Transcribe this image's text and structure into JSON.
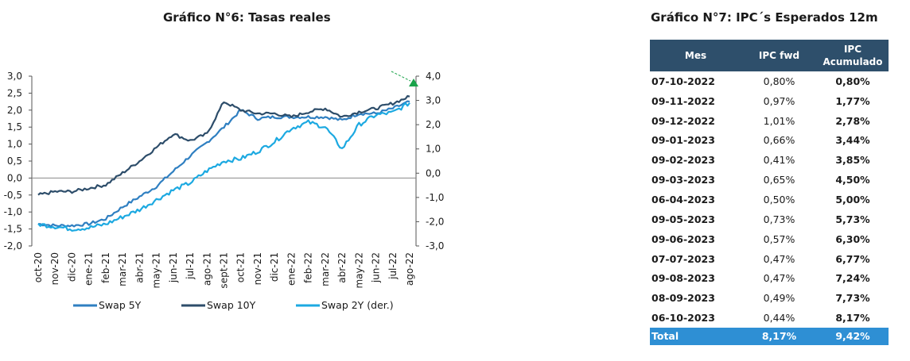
{
  "chart_title": "Gráfico N°6:  Tasas reales",
  "table_title": "Gráfico N°7:  IPC´s Esperados 12m",
  "chart_data": [
    {
      "type": "line",
      "title": "Gráfico N°6:  Tasas reales",
      "categories": [
        "oct-20",
        "nov-20",
        "dic-20",
        "ene-21",
        "feb-21",
        "mar-21",
        "abr-21",
        "may-21",
        "jun-21",
        "jul-21",
        "ago-21",
        "sept-21",
        "oct-21",
        "nov-21",
        "dic-21",
        "ene-22",
        "feb-22",
        "mar-22",
        "abr-22",
        "may-22",
        "jun-22",
        "jul-22",
        "ago-22"
      ],
      "y_left": {
        "ylim": [
          -2.0,
          3.0
        ],
        "ticks": [
          "3,0",
          "2,5",
          "2,0",
          "1,5",
          "1,0",
          "0,5",
          "0,0",
          "-0,5",
          "-1,0",
          "-1,5",
          "-2,0"
        ]
      },
      "y_right": {
        "ylim": [
          -3.0,
          4.0
        ],
        "ticks": [
          "4,0",
          "3,0",
          "2,0",
          "1,0",
          "0,0",
          "-1,0",
          "-2,0",
          "-3,0"
        ]
      },
      "legend_position": "bottom",
      "series": [
        {
          "name": "Swap 5Y",
          "axis": "left",
          "color": "#2f7fc1",
          "values": [
            -1.35,
            -1.4,
            -1.4,
            -1.35,
            -1.2,
            -0.85,
            -0.55,
            -0.25,
            0.2,
            0.65,
            1.05,
            1.5,
            2.0,
            1.75,
            1.8,
            1.8,
            1.8,
            1.8,
            1.7,
            1.9,
            1.9,
            2.05,
            2.25
          ]
        },
        {
          "name": "Swap 10Y",
          "axis": "left",
          "color": "#2d4d6a",
          "values": [
            -0.5,
            -0.4,
            -0.4,
            -0.3,
            -0.2,
            0.15,
            0.5,
            0.9,
            1.3,
            1.1,
            1.3,
            2.25,
            2.0,
            1.9,
            1.9,
            1.8,
            1.95,
            2.05,
            1.8,
            1.95,
            2.05,
            2.2,
            2.4
          ]
        },
        {
          "name": "Swap 2Y (der.)",
          "axis": "right",
          "color": "#1ca9e1",
          "values": [
            -2.1,
            -2.2,
            -2.3,
            -2.25,
            -2.1,
            -1.8,
            -1.5,
            -1.1,
            -0.7,
            -0.4,
            0.1,
            0.5,
            0.6,
            0.9,
            1.3,
            1.85,
            2.1,
            1.9,
            1.0,
            2.0,
            2.4,
            2.5,
            2.9
          ]
        }
      ],
      "annotation": {
        "type": "arrow",
        "color": "#1aa34a"
      }
    },
    {
      "type": "table",
      "title": "Gráfico N°7:  IPC´s Esperados 12m",
      "columns": [
        "Mes",
        "IPC fwd",
        "IPC Acumulado"
      ],
      "rows": [
        [
          "07-10-2022",
          "0,80%",
          "0,80%"
        ],
        [
          "09-11-2022",
          "0,97%",
          "1,77%"
        ],
        [
          "09-12-2022",
          "1,01%",
          "2,78%"
        ],
        [
          "09-01-2023",
          "0,66%",
          "3,44%"
        ],
        [
          "09-02-2023",
          "0,41%",
          "3,85%"
        ],
        [
          "09-03-2023",
          "0,65%",
          "4,50%"
        ],
        [
          "06-04-2023",
          "0,50%",
          "5,00%"
        ],
        [
          "09-05-2023",
          "0,73%",
          "5,73%"
        ],
        [
          "09-06-2023",
          "0,57%",
          "6,30%"
        ],
        [
          "07-07-2023",
          "0,47%",
          "6,77%"
        ],
        [
          "09-08-2023",
          "0,47%",
          "7,24%"
        ],
        [
          "08-09-2023",
          "0,49%",
          "7,73%"
        ],
        [
          "06-10-2023",
          "0,44%",
          "8,17%"
        ]
      ],
      "total": [
        "Total",
        "8,17%",
        "9,42%"
      ]
    }
  ],
  "colors": {
    "header_bg": "#2e4f6b",
    "total_bg": "#2e8fd4",
    "arrow": "#1aa34a"
  }
}
